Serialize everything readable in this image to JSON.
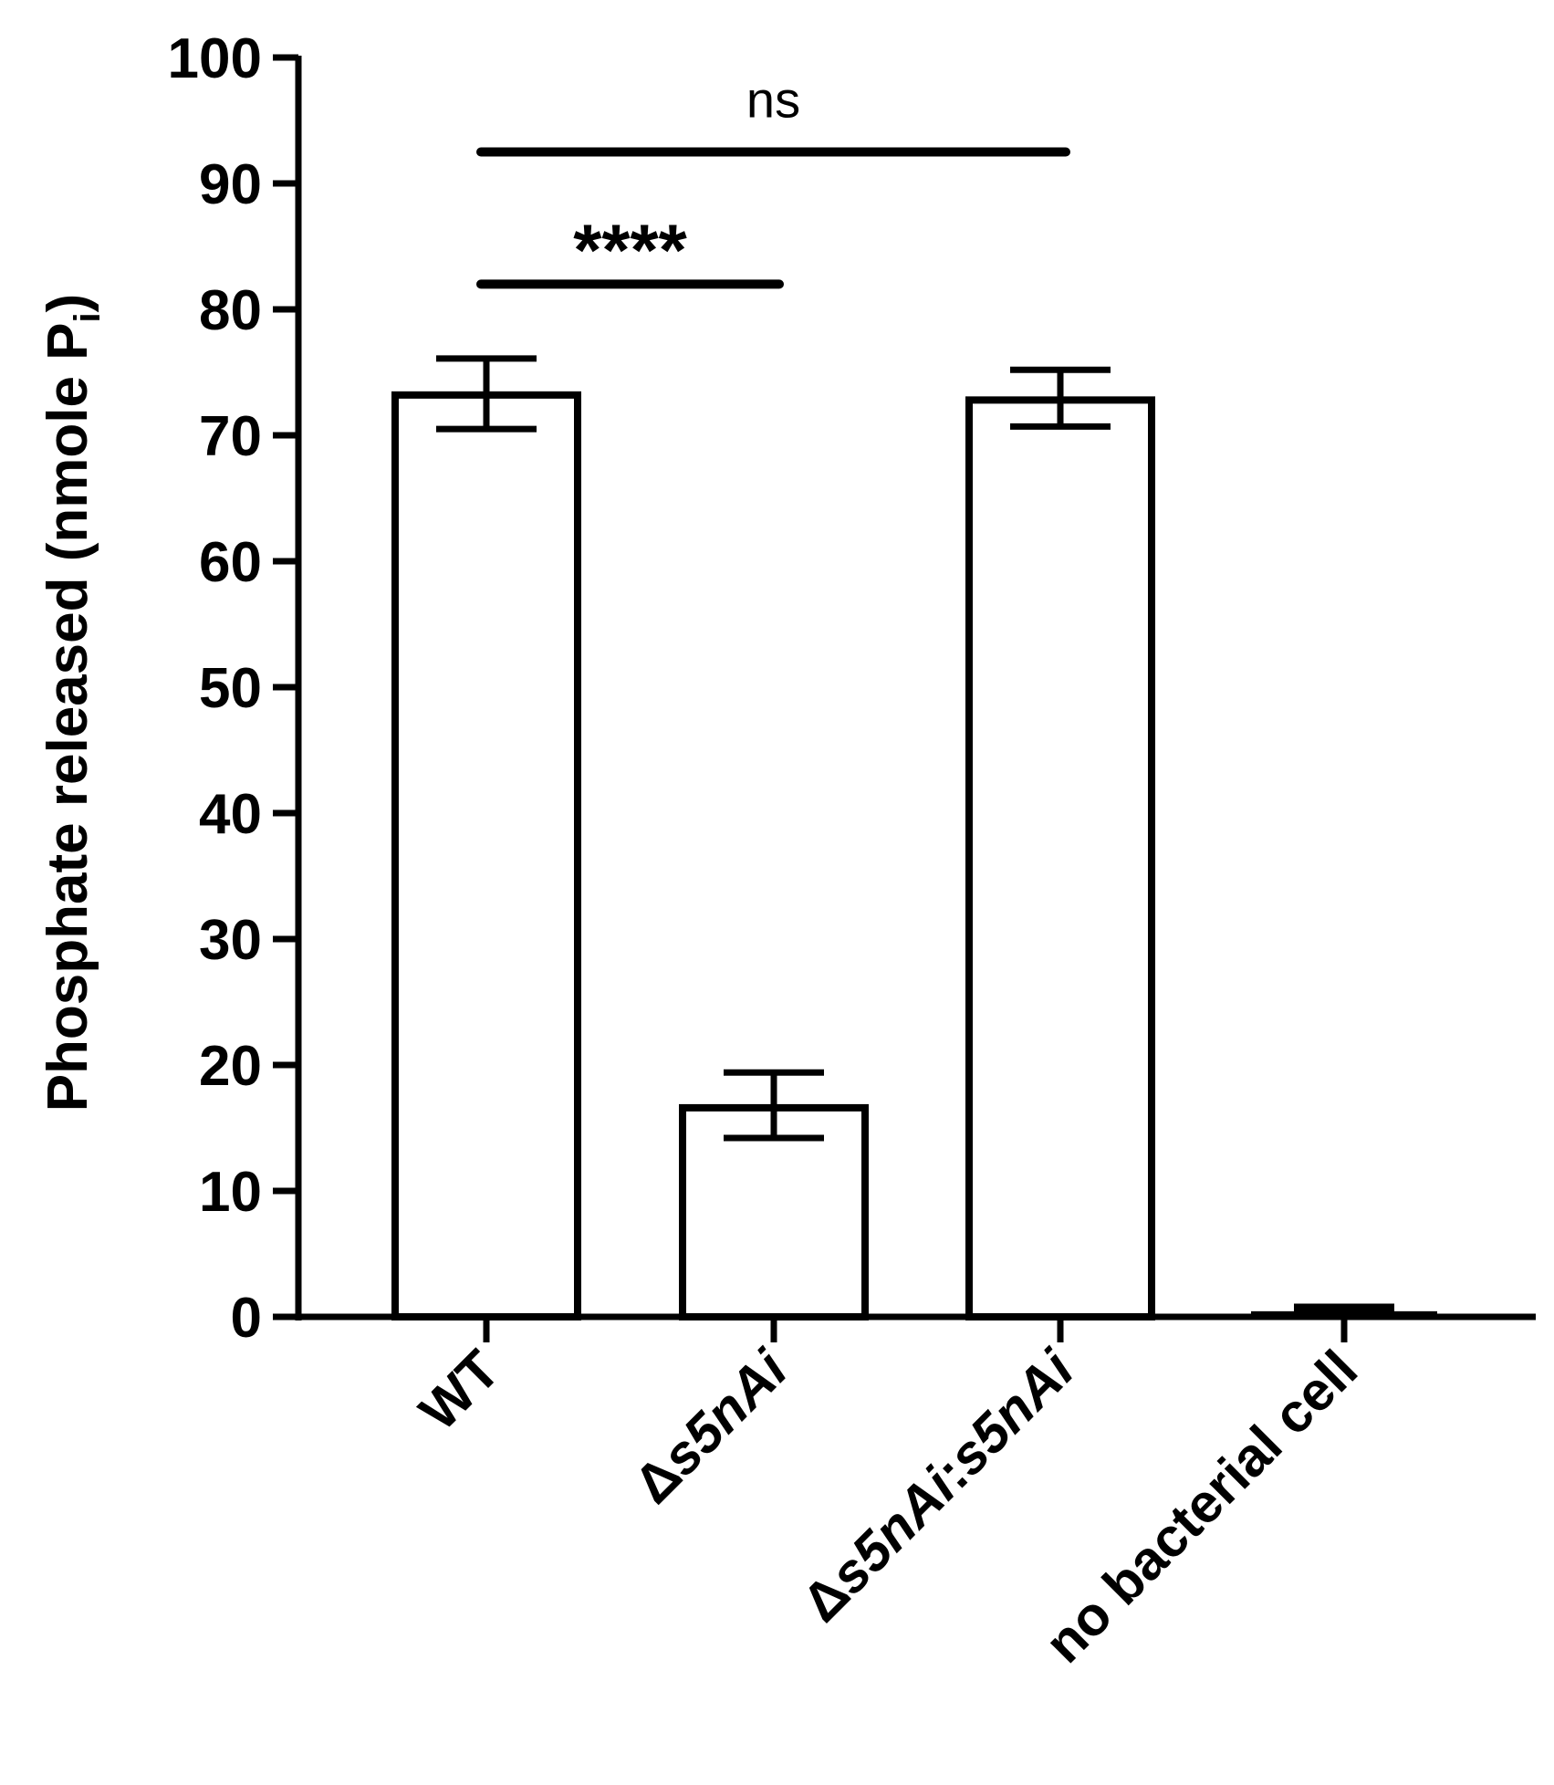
{
  "chart_data": {
    "type": "bar",
    "categories": [
      {
        "prefix": "",
        "italic": "",
        "suffix": "WT"
      },
      {
        "prefix": "Δ",
        "italic": "s5nAi",
        "suffix": ""
      },
      {
        "prefix": "Δ",
        "italic": "s5nAi",
        "suffix": ":",
        "italic2": "s5nAi"
      },
      {
        "prefix": "",
        "italic": "",
        "suffix": "no bacterial cell"
      }
    ],
    "category_names": [
      "WT",
      "Δs5nAi",
      "Δs5nAi:s5nAi",
      "no bacterial cell"
    ],
    "values": [
      73.2,
      16.6,
      72.8,
      0.3
    ],
    "error_upper": [
      76.1,
      19.4,
      75.2,
      0.8
    ],
    "error_lower": [
      70.5,
      14.2,
      70.7,
      0.3
    ],
    "ylabel": "Phosphate released (nmole P",
    "ylabel_sub": "i",
    "ylabel_close": ")",
    "ylim": [
      0,
      100
    ],
    "yticks": [
      0,
      10,
      20,
      30,
      40,
      50,
      60,
      70,
      80,
      90,
      100
    ],
    "bar_fill": "#ffffff",
    "bar_stroke": "#000000",
    "significance": [
      {
        "from": 0,
        "to": 1,
        "y": 82,
        "label": "****"
      },
      {
        "from": 0,
        "to": 2,
        "y": 92.5,
        "label": "ns"
      }
    ]
  }
}
